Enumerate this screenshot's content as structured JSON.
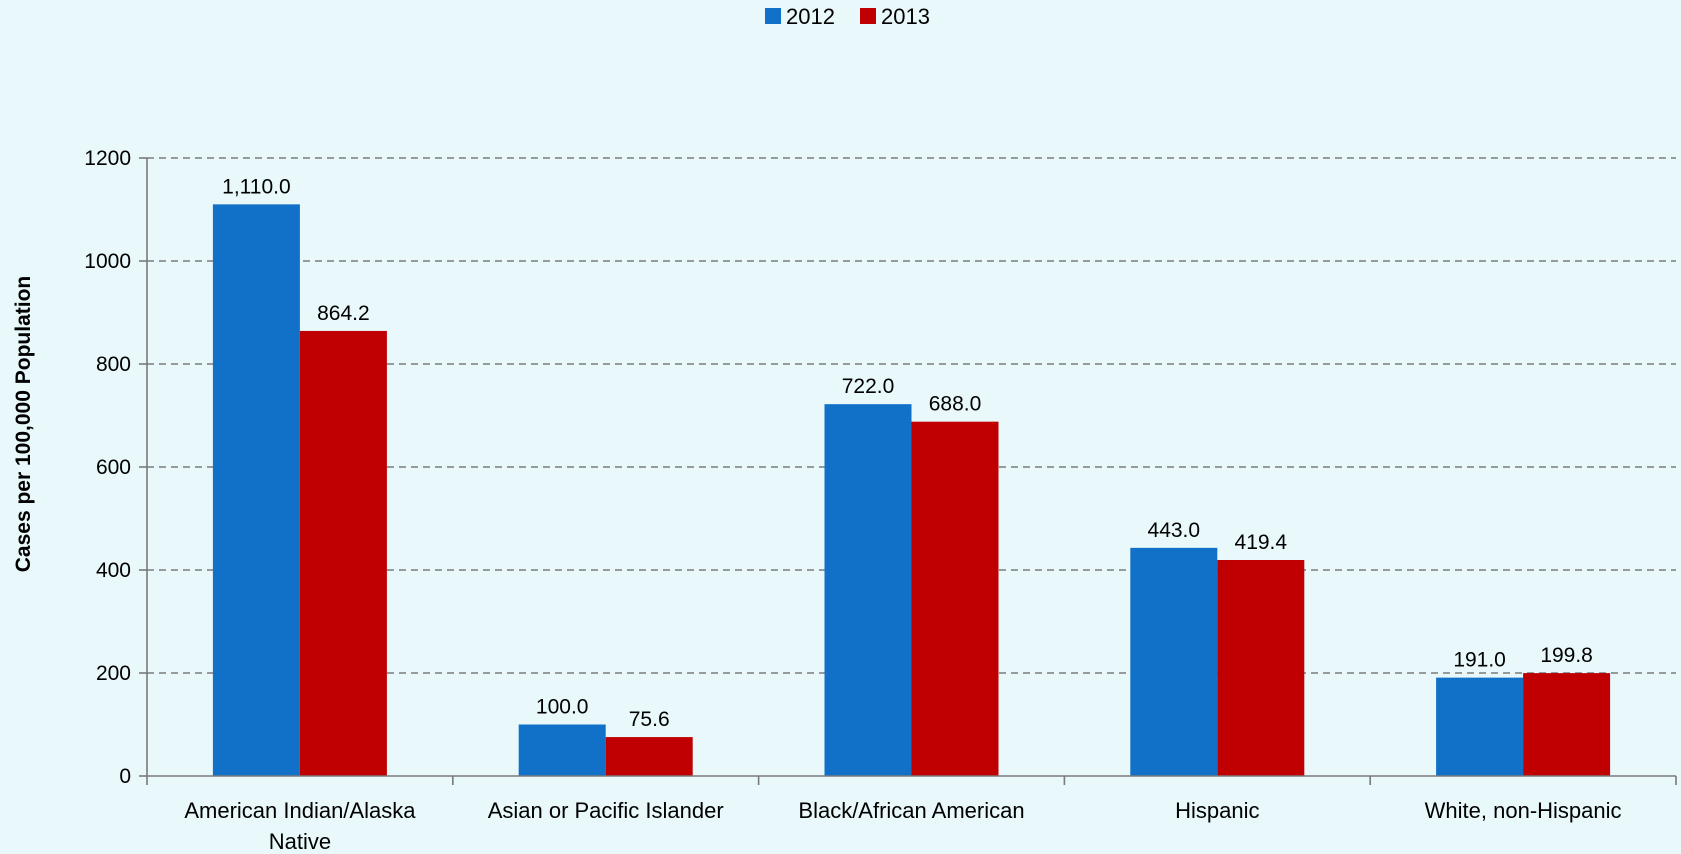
{
  "chart_data": {
    "type": "bar",
    "categories": [
      [
        "American Indian/Alaska",
        "Native"
      ],
      [
        "Asian or Pacific Islander"
      ],
      [
        "Black/African American"
      ],
      [
        "Hispanic"
      ],
      [
        "White, non-Hispanic"
      ]
    ],
    "series": [
      {
        "name": "2012",
        "color": "#1170c8",
        "values": [
          1110.0,
          100.0,
          722.0,
          443.0,
          191.0
        ],
        "labels": [
          "1,110.0",
          "100.0",
          "722.0",
          "443.0",
          "191.0"
        ]
      },
      {
        "name": "2013",
        "color": "#c00000",
        "values": [
          864.2,
          75.6,
          688.0,
          419.4,
          199.8
        ],
        "labels": [
          "864.2",
          "75.6",
          "688.0",
          "419.4",
          "199.8"
        ]
      }
    ],
    "title": "",
    "xlabel": "",
    "ylabel": "Cases per 100,000 Population",
    "ylim": [
      0,
      1200
    ],
    "yticks": [
      0,
      200,
      400,
      600,
      800,
      1000,
      1200
    ],
    "grid": true,
    "legend": "top-center"
  }
}
